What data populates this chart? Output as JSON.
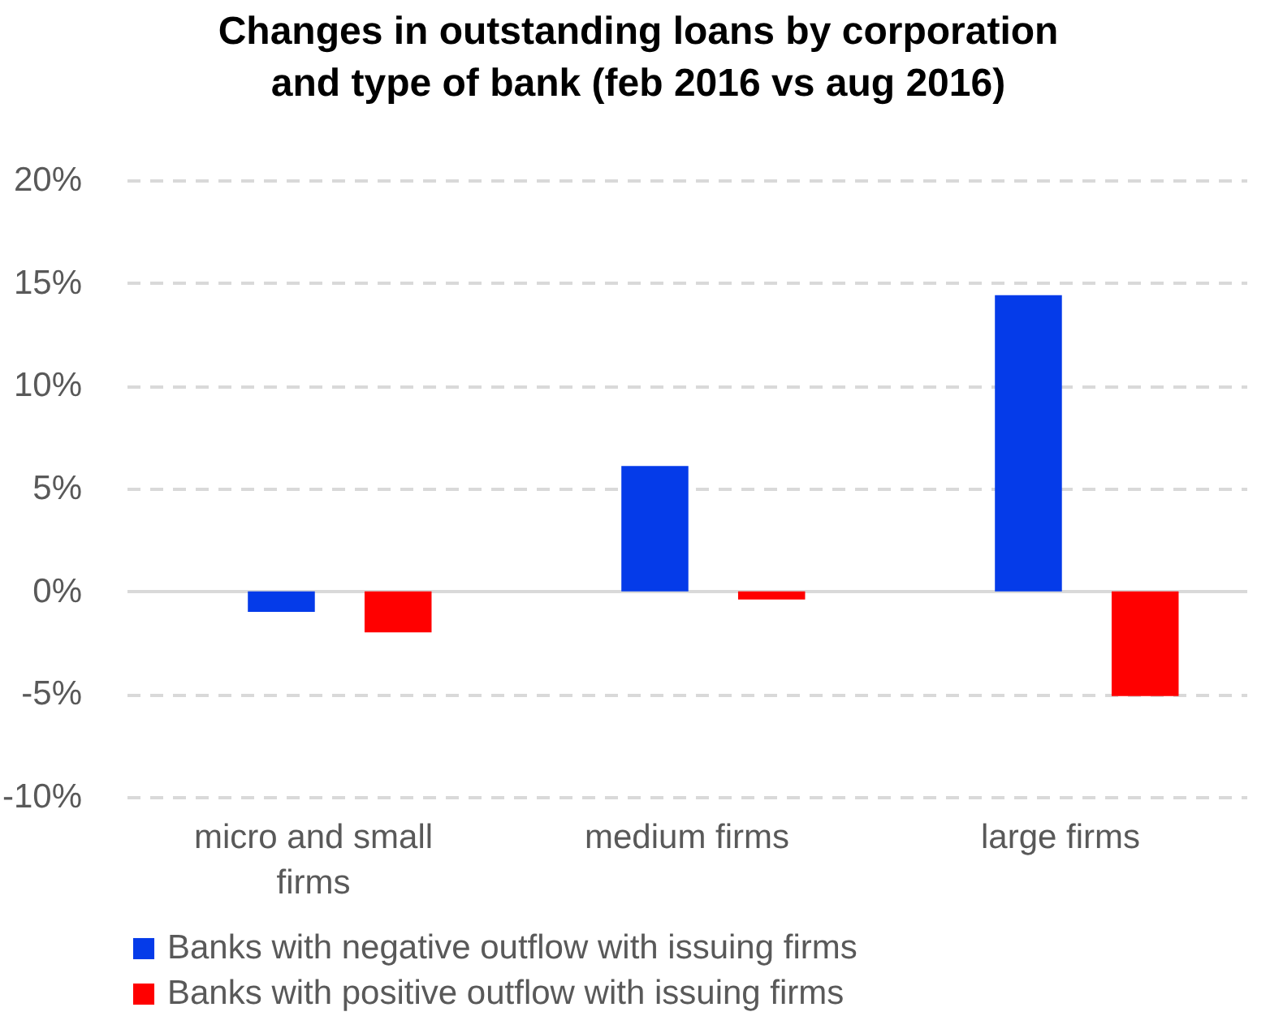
{
  "chart_data": {
    "type": "bar",
    "title": "Changes in outstanding loans by corporation\nand type of bank (feb 2016 vs aug 2016)",
    "categories": [
      "micro and small firms",
      "medium firms",
      "large firms"
    ],
    "series": [
      {
        "name": "Banks with negative outflow with issuing firms",
        "color": "#053be9",
        "values": [
          -1.0,
          6.1,
          14.4
        ]
      },
      {
        "name": "Banks with positive outflow with issuing firms",
        "color": "#ff0000",
        "values": [
          -2.0,
          -0.4,
          -5.1
        ]
      }
    ],
    "ylim": [
      -10,
      20
    ],
    "yticks": [
      {
        "value": -10,
        "label": "-10%"
      },
      {
        "value": -5,
        "label": "-5%"
      },
      {
        "value": 0,
        "label": "0%"
      },
      {
        "value": 5,
        "label": "5%"
      },
      {
        "value": 10,
        "label": "10%"
      },
      {
        "value": 15,
        "label": "15%"
      },
      {
        "value": 20,
        "label": "20%"
      }
    ],
    "grid": "y",
    "legend": "bottom"
  }
}
